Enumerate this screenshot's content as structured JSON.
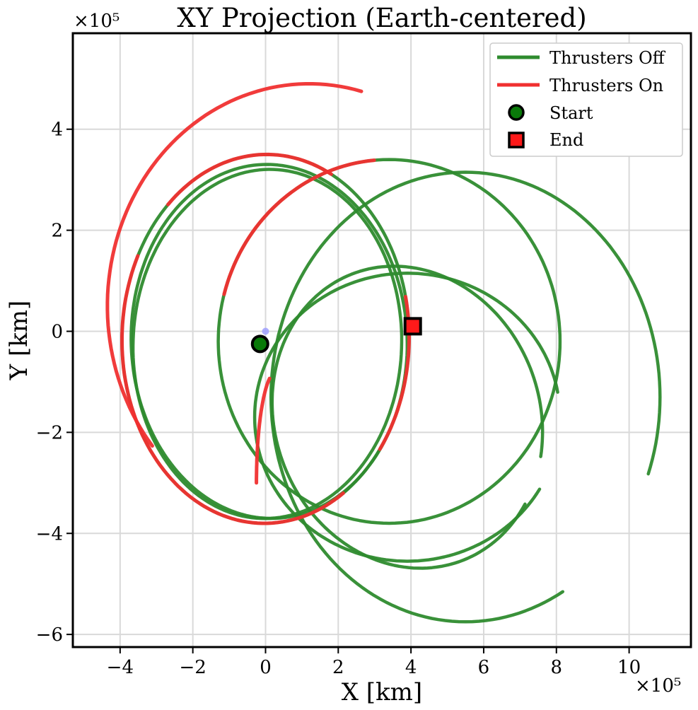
{
  "chart_data": {
    "type": "line",
    "title": "XY Projection (Earth-centered)",
    "xlabel": "X [km]",
    "ylabel": "Y [km]",
    "x_multiplier": "×10⁵",
    "y_multiplier": "×10⁵",
    "xlim": [
      -5.3,
      11.7
    ],
    "ylim": [
      -6.25,
      5.9
    ],
    "xticks": [
      -4,
      -2,
      0,
      2,
      4,
      6,
      8,
      10
    ],
    "yticks": [
      -6,
      -4,
      -2,
      0,
      2,
      4
    ],
    "xtick_labels": [
      "−4",
      "−2",
      "0",
      "2",
      "4",
      "6",
      "8",
      "10"
    ],
    "ytick_labels": [
      "−6",
      "−4",
      "−2",
      "0",
      "2",
      "4"
    ],
    "grid": true,
    "legend_position": "top-right",
    "colors": {
      "off": "#1f8a1f",
      "on": "#f03030",
      "earth": "#9999ff"
    },
    "legend": [
      {
        "label": "Thrusters Off",
        "kind": "line",
        "color": "#2e8b2e"
      },
      {
        "label": "Thrusters On",
        "kind": "line",
        "color": "#f03030"
      },
      {
        "label": "Start",
        "kind": "circle",
        "color": "#0a7a0a"
      },
      {
        "label": "End",
        "kind": "square",
        "color": "#ff1a1a"
      }
    ],
    "series": [
      {
        "name": "Thrusters Off",
        "color": "#2e8b2e",
        "segments": [
          {
            "cx": 0.0,
            "cy": -0.15,
            "rx": 3.95,
            "ry": 3.65,
            "rot": 3,
            "t0": 0,
            "t1": 360
          },
          {
            "cx": 0.1,
            "cy": -0.2,
            "rx": 3.8,
            "ry": 3.5,
            "rot": -6,
            "t0": 0,
            "t1": 360
          },
          {
            "cx": 0.05,
            "cy": -0.25,
            "rx": 3.7,
            "ry": 3.45,
            "rot": 8,
            "t0": 0,
            "t1": 360
          },
          {
            "cx": 3.4,
            "cy": -0.2,
            "rx": 4.7,
            "ry": 3.6,
            "rot": 0,
            "t0": 0,
            "t1": 360
          },
          {
            "cx": 5.5,
            "cy": -1.3,
            "rx": 5.35,
            "ry": 4.45,
            "rot": 0,
            "t0": -20,
            "t1": 300
          },
          {
            "cx": 3.9,
            "cy": -1.7,
            "rx": 4.2,
            "ry": 2.85,
            "rot": 0,
            "t0": 10,
            "t1": 330
          },
          {
            "cx": 3.9,
            "cy": -1.7,
            "rx": 3.75,
            "ry": 2.95,
            "rot": -12,
            "t0": 0,
            "t1": 340
          }
        ]
      },
      {
        "name": "Thrusters On",
        "color": "#f03030",
        "segments": [
          {
            "cx": 1.2,
            "cy": 0.5,
            "rx": 5.55,
            "ry": 4.4,
            "rot": 0,
            "t0": 75,
            "t1": 220
          },
          {
            "cx": 3.4,
            "cy": -0.2,
            "rx": 4.7,
            "ry": 3.6,
            "rot": 0,
            "t0": 95,
            "t1": 165
          },
          {
            "cx": 0.3,
            "cy": -3.0,
            "rx": 0.55,
            "ry": 2.2,
            "rot": 0,
            "t0": 110,
            "t1": 180
          },
          {
            "cx": 0.0,
            "cy": -0.15,
            "rx": 3.95,
            "ry": 3.65,
            "rot": 3,
            "t0": 60,
            "t1": 130
          },
          {
            "cx": 0.0,
            "cy": -0.15,
            "rx": 3.95,
            "ry": 3.65,
            "rot": 3,
            "t0": 150,
            "t1": 300
          },
          {
            "cx": 0.0,
            "cy": -0.15,
            "rx": 3.95,
            "ry": 3.65,
            "rot": 3,
            "t0": 320,
            "t1": 370
          }
        ]
      }
    ],
    "markers": {
      "start": {
        "x": -0.15,
        "y": -0.25
      },
      "end": {
        "x": 4.05,
        "y": 0.1
      },
      "earth": {
        "x": 0.0,
        "y": 0.0
      }
    }
  }
}
